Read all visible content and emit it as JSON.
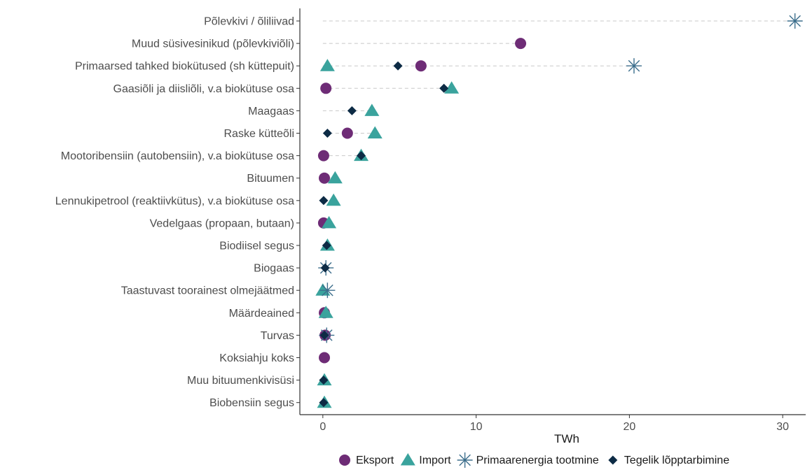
{
  "chart_data": {
    "type": "scatter",
    "xlabel": "TWh",
    "ylabel": "",
    "xlim": [
      -1.5,
      31.5
    ],
    "xticks": [
      0,
      10,
      20,
      30
    ],
    "grid": false,
    "legend_position": "bottom-right",
    "colors": {
      "Eksport": "#6e2c76",
      "Import": "#3aa39d",
      "Primaarenergia tootmine": "#3c6e8c",
      "Tegelik lõpptarbimine": "#0d2b45",
      "guide": "#c8c8c8"
    },
    "series": [
      {
        "name": "Eksport",
        "marker": "circle"
      },
      {
        "name": "Import",
        "marker": "triangle"
      },
      {
        "name": "Primaarenergia tootmine",
        "marker": "asterisk"
      },
      {
        "name": "Tegelik lõpptarbimine",
        "marker": "diamond"
      }
    ],
    "categories": [
      {
        "label": "Põlevkivi / õliliivad",
        "values": {
          "Eksport": null,
          "Import": null,
          "Primaarenergia tootmine": 30.8,
          "Tegelik lõpptarbimine": null
        }
      },
      {
        "label": "Muud süsivesinikud (põlevkiviõli)",
        "values": {
          "Eksport": 12.9,
          "Import": null,
          "Primaarenergia tootmine": null,
          "Tegelik lõpptarbimine": null
        }
      },
      {
        "label": "Primaarsed tahked biokütused (sh küttepuit)",
        "values": {
          "Eksport": 6.4,
          "Import": 0.3,
          "Primaarenergia tootmine": 20.3,
          "Tegelik lõpptarbimine": 4.9
        }
      },
      {
        "label": "Gaasiõli ja diisliõli, v.a biokütuse osa",
        "values": {
          "Eksport": 0.2,
          "Import": 8.4,
          "Primaarenergia tootmine": null,
          "Tegelik lõpptarbimine": 7.9
        }
      },
      {
        "label": "Maagaas",
        "values": {
          "Eksport": null,
          "Import": 3.2,
          "Primaarenergia tootmine": null,
          "Tegelik lõpptarbimine": 1.9
        }
      },
      {
        "label": "Raske kütteõli",
        "values": {
          "Eksport": 1.6,
          "Import": 3.4,
          "Primaarenergia tootmine": null,
          "Tegelik lõpptarbimine": 0.3
        }
      },
      {
        "label": "Mootoribensiin (autobensiin), v.a biokütuse osa",
        "values": {
          "Eksport": 0.05,
          "Import": 2.5,
          "Primaarenergia tootmine": null,
          "Tegelik lõpptarbimine": 2.5
        }
      },
      {
        "label": "Bituumen",
        "values": {
          "Eksport": 0.1,
          "Import": 0.8,
          "Primaarenergia tootmine": null,
          "Tegelik lõpptarbimine": null
        }
      },
      {
        "label": "Lennukipetrool (reaktiivkütus), v.a biokütuse osa",
        "values": {
          "Eksport": null,
          "Import": 0.7,
          "Primaarenergia tootmine": null,
          "Tegelik lõpptarbimine": 0.05
        }
      },
      {
        "label": "Vedelgaas (propaan, butaan)",
        "values": {
          "Eksport": 0.05,
          "Import": 0.4,
          "Primaarenergia tootmine": null,
          "Tegelik lõpptarbimine": null
        }
      },
      {
        "label": "Biodiisel segus",
        "values": {
          "Eksport": null,
          "Import": 0.3,
          "Primaarenergia tootmine": null,
          "Tegelik lõpptarbimine": 0.25
        }
      },
      {
        "label": "Biogaas",
        "values": {
          "Eksport": null,
          "Import": null,
          "Primaarenergia tootmine": 0.2,
          "Tegelik lõpptarbimine": 0.15
        }
      },
      {
        "label": "Taastuvast toorainest olmejäätmed",
        "values": {
          "Eksport": null,
          "Import": 0.0,
          "Primaarenergia tootmine": 0.3,
          "Tegelik lõpptarbimine": null
        }
      },
      {
        "label": "Määrdeained",
        "values": {
          "Eksport": 0.1,
          "Import": 0.2,
          "Primaarenergia tootmine": null,
          "Tegelik lõpptarbimine": null
        }
      },
      {
        "label": "Turvas",
        "values": {
          "Eksport": 0.15,
          "Import": null,
          "Primaarenergia tootmine": 0.25,
          "Tegelik lõpptarbimine": 0.1
        }
      },
      {
        "label": "Koksiahju koks",
        "values": {
          "Eksport": 0.1,
          "Import": null,
          "Primaarenergia tootmine": null,
          "Tegelik lõpptarbimine": null
        }
      },
      {
        "label": "Muu bituumenkivisüsi",
        "values": {
          "Eksport": null,
          "Import": 0.1,
          "Primaarenergia tootmine": null,
          "Tegelik lõpptarbimine": 0.05
        }
      },
      {
        "label": "Biobensiin segus",
        "values": {
          "Eksport": null,
          "Import": 0.1,
          "Primaarenergia tootmine": null,
          "Tegelik lõpptarbimine": 0.05
        }
      }
    ]
  }
}
